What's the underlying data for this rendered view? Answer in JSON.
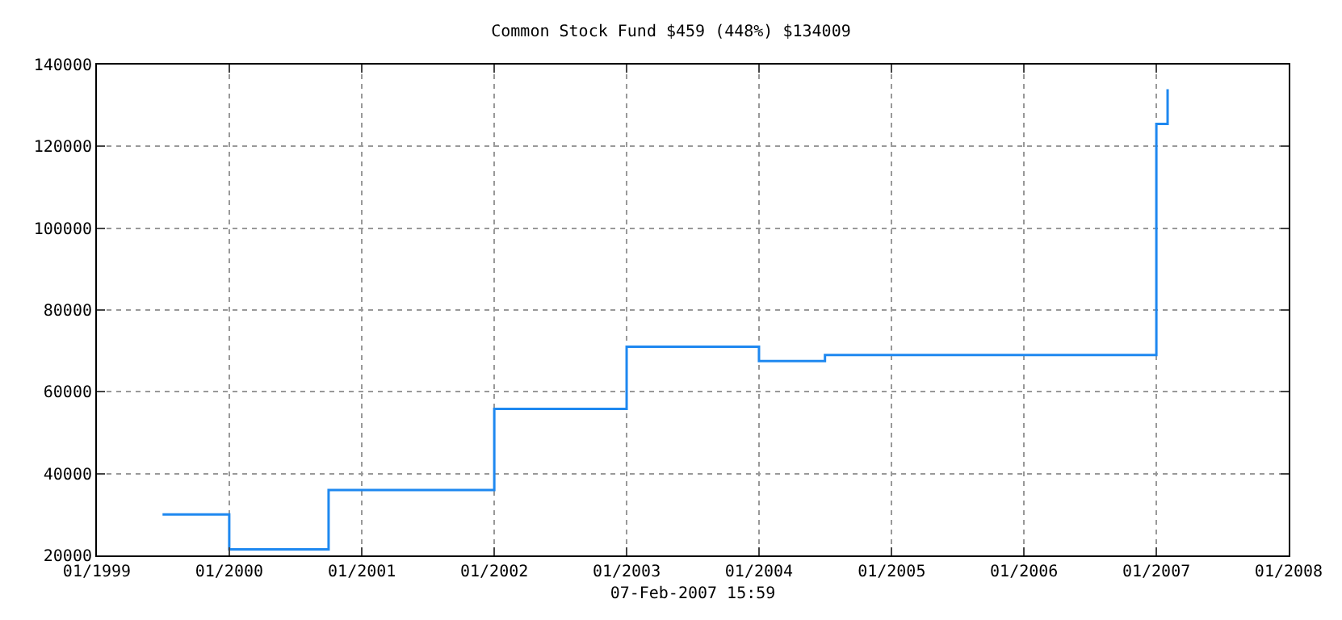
{
  "chart_data": {
    "type": "step",
    "title": "Common Stock Fund $459 (448%) $134009",
    "xlabel": "07-Feb-2007 15:59",
    "x": [
      "1999-07",
      "2000-01",
      "2000-10",
      "2002-01",
      "2003-01",
      "2004-01",
      "2004-07",
      "2007-01",
      "2007-02"
    ],
    "series": [
      {
        "color": "#1e88f0",
        "values": [
          30000,
          21500,
          36000,
          55800,
          71000,
          67500,
          69000,
          125500,
          134000
        ]
      }
    ],
    "xlim": [
      "1999-01",
      "2008-01"
    ],
    "xticks": [
      {
        "value": "1999-01",
        "label": "01/1999"
      },
      {
        "value": "2000-01",
        "label": "01/2000"
      },
      {
        "value": "2001-01",
        "label": "01/2001"
      },
      {
        "value": "2002-01",
        "label": "01/2002"
      },
      {
        "value": "2003-01",
        "label": "01/2003"
      },
      {
        "value": "2004-01",
        "label": "01/2004"
      },
      {
        "value": "2005-01",
        "label": "01/2005"
      },
      {
        "value": "2006-01",
        "label": "01/2006"
      },
      {
        "value": "2007-01",
        "label": "01/2007"
      },
      {
        "value": "2008-01",
        "label": "01/2008"
      }
    ],
    "ylim": [
      20000,
      140000
    ],
    "yticks": [
      20000,
      40000,
      60000,
      80000,
      100000,
      120000,
      140000
    ],
    "grid": true,
    "legend": false,
    "line_style": "solid"
  }
}
